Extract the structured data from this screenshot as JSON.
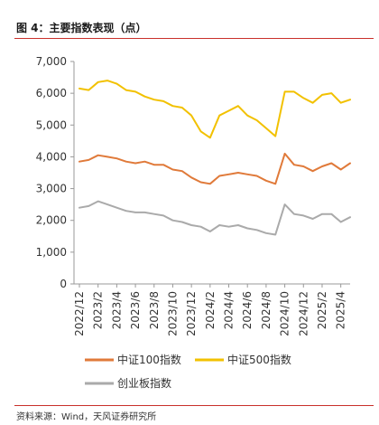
{
  "figure": {
    "title": "图 4：主要指数表现（点）",
    "source": "资料来源：Wind，天风证券研究所"
  },
  "chart_data": {
    "type": "line",
    "title": "",
    "xlabel": "",
    "ylabel": "",
    "ylim": [
      0,
      7000
    ],
    "yticks": [
      "0",
      "1,000",
      "2,000",
      "3,000",
      "4,000",
      "5,000",
      "6,000",
      "7,000"
    ],
    "ytick_values": [
      0,
      1000,
      2000,
      3000,
      4000,
      5000,
      6000,
      7000
    ],
    "x_tick_labels": [
      "2022/12",
      "2023/2",
      "2023/4",
      "2023/6",
      "2023/8",
      "2023/10",
      "2023/12",
      "2024/2",
      "2024/4",
      "2024/6",
      "2024/8",
      "2024/10",
      "2024/12",
      "2025/2",
      "2025/4"
    ],
    "x": [
      "2022/12",
      "2023/1",
      "2023/2",
      "2023/3",
      "2023/4",
      "2023/5",
      "2023/6",
      "2023/7",
      "2023/8",
      "2023/9",
      "2023/10",
      "2023/11",
      "2023/12",
      "2024/1",
      "2024/2",
      "2024/3",
      "2024/4",
      "2024/5",
      "2024/6",
      "2024/7",
      "2024/8",
      "2024/9",
      "2024/10",
      "2024/11",
      "2024/12",
      "2025/1",
      "2025/2",
      "2025/3",
      "2025/4",
      "2025/5"
    ],
    "grid": false,
    "legend_position": "bottom",
    "series": [
      {
        "name": "中证100指数",
        "color": "#e07a3a",
        "values": [
          3850,
          3900,
          4050,
          4000,
          3950,
          3850,
          3800,
          3850,
          3750,
          3750,
          3600,
          3550,
          3350,
          3200,
          3150,
          3400,
          3450,
          3500,
          3450,
          3400,
          3250,
          3150,
          4100,
          3750,
          3700,
          3550,
          3700,
          3800,
          3600,
          3800
        ]
      },
      {
        "name": "中证500指数",
        "color": "#f2c100",
        "values": [
          6150,
          6100,
          6350,
          6400,
          6300,
          6100,
          6050,
          5900,
          5800,
          5750,
          5600,
          5550,
          5300,
          4800,
          4600,
          5300,
          5450,
          5600,
          5300,
          5150,
          4900,
          4650,
          6050,
          6050,
          5850,
          5700,
          5950,
          6000,
          5700,
          5800
        ]
      },
      {
        "name": "创业板指数",
        "color": "#aaaaaa",
        "values": [
          2400,
          2450,
          2600,
          2500,
          2400,
          2300,
          2250,
          2250,
          2200,
          2150,
          2000,
          1950,
          1850,
          1800,
          1650,
          1850,
          1800,
          1850,
          1750,
          1700,
          1600,
          1550,
          2500,
          2200,
          2150,
          2050,
          2200,
          2200,
          1950,
          2100
        ]
      }
    ]
  }
}
